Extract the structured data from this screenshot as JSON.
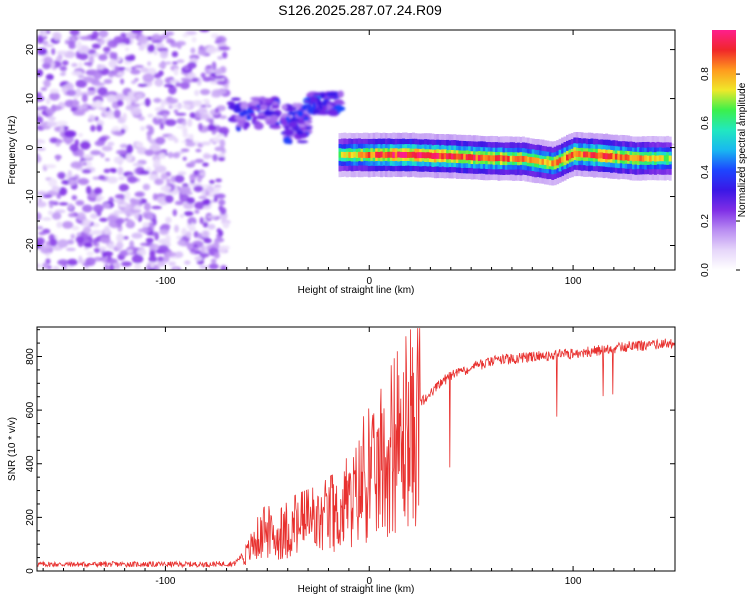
{
  "title": "S126.2025.287.07.24.R09",
  "colors": {
    "snr_line": "#e8312f",
    "axis": "#000000",
    "colormap": [
      "#ffffff",
      "#e6d6fa",
      "#b98cf2",
      "#7f2ee6",
      "#3a17e6",
      "#1d46ff",
      "#19b8f0",
      "#21e8c0",
      "#3cf04a",
      "#f0e82a",
      "#ff9a1e",
      "#f0262a",
      "#ff1e8c"
    ]
  },
  "chart_data": [
    {
      "type": "heatmap",
      "name": "spectrogram",
      "title": "S126.2025.287.07.24.R09",
      "xlabel": "Height of straight line (km)",
      "ylabel": "Frequency (Hz)",
      "xlim": [
        -163,
        150
      ],
      "ylim": [
        -25,
        24
      ],
      "x_ticks": [
        -100,
        0,
        100
      ],
      "x_tick_labels": [
        "-100",
        "0",
        "100"
      ],
      "y_ticks": [
        -20,
        -10,
        0,
        10,
        20
      ],
      "y_tick_labels": [
        "-20",
        "-10",
        "0",
        "10",
        "20"
      ],
      "noise_region": {
        "x": [
          -163,
          -70
        ],
        "y": [
          -25,
          24
        ],
        "amplitude_range": [
          0.05,
          0.25
        ]
      },
      "clusters": [
        {
          "x": [
            -68,
            -45
          ],
          "y": [
            4,
            10
          ],
          "amplitude": 0.35
        },
        {
          "x": [
            -42,
            -30
          ],
          "y": [
            1,
            9
          ],
          "amplitude": 0.35
        },
        {
          "x": [
            -30,
            -14
          ],
          "y": [
            7,
            11
          ],
          "amplitude": 0.4
        }
      ],
      "ridge": [
        {
          "x": -15,
          "y": -1.5,
          "amplitude": 0.7
        },
        {
          "x": 0,
          "y": -1.5,
          "amplitude": 0.85
        },
        {
          "x": 20,
          "y": -1.5,
          "amplitude": 0.95
        },
        {
          "x": 40,
          "y": -1.8,
          "amplitude": 0.9
        },
        {
          "x": 60,
          "y": -2.2,
          "amplitude": 0.85
        },
        {
          "x": 75,
          "y": -2.3,
          "amplitude": 0.8
        },
        {
          "x": 90,
          "y": -3.3,
          "amplitude": 0.8
        },
        {
          "x": 100,
          "y": -1.3,
          "amplitude": 0.85
        },
        {
          "x": 115,
          "y": -1.7,
          "amplitude": 0.9
        },
        {
          "x": 130,
          "y": -2.2,
          "amplitude": 0.8
        },
        {
          "x": 148,
          "y": -2.2,
          "amplitude": 0.7
        }
      ],
      "colorbar": {
        "label": "Normalized spectral amplitude",
        "range": [
          0,
          0.98
        ],
        "ticks": [
          0.0,
          0.2,
          0.4,
          0.6,
          0.8
        ],
        "tick_labels": [
          "0.0",
          "0.2",
          "0.4",
          "0.6",
          "0.8"
        ]
      }
    },
    {
      "type": "line",
      "name": "snr",
      "xlabel": "Height of straight line (km)",
      "ylabel": "SNR (10 * v/v)",
      "xlim": [
        -163,
        150
      ],
      "ylim": [
        0,
        910
      ],
      "x_ticks": [
        -100,
        0,
        100
      ],
      "x_tick_labels": [
        "-100",
        "0",
        "100"
      ],
      "y_ticks": [
        0,
        200,
        400,
        600,
        800
      ],
      "y_tick_labels": [
        "0",
        "200",
        "400",
        "600",
        "800"
      ],
      "series": [
        {
          "name": "SNR",
          "x": [
            -163,
            -140,
            -120,
            -100,
            -80,
            -66,
            -60,
            -55,
            -50,
            -45,
            -40,
            -35,
            -30,
            -25,
            -20,
            -15,
            -10,
            -5,
            0,
            5,
            10,
            15,
            20,
            25,
            30,
            35,
            40,
            45,
            50,
            55,
            60,
            65,
            70,
            75,
            80,
            85,
            90,
            95,
            100,
            105,
            110,
            115,
            120,
            125,
            130,
            135,
            140,
            145,
            150
          ],
          "values": [
            25,
            25,
            25,
            25,
            25,
            28,
            80,
            150,
            170,
            150,
            180,
            200,
            210,
            220,
            240,
            260,
            300,
            380,
            420,
            460,
            520,
            580,
            620,
            650,
            680,
            720,
            750,
            760,
            780,
            790,
            800,
            810,
            810,
            815,
            820,
            820,
            825,
            830,
            830,
            835,
            840,
            845,
            850,
            855,
            860,
            862,
            865,
            868,
            870
          ]
        }
      ]
    }
  ]
}
